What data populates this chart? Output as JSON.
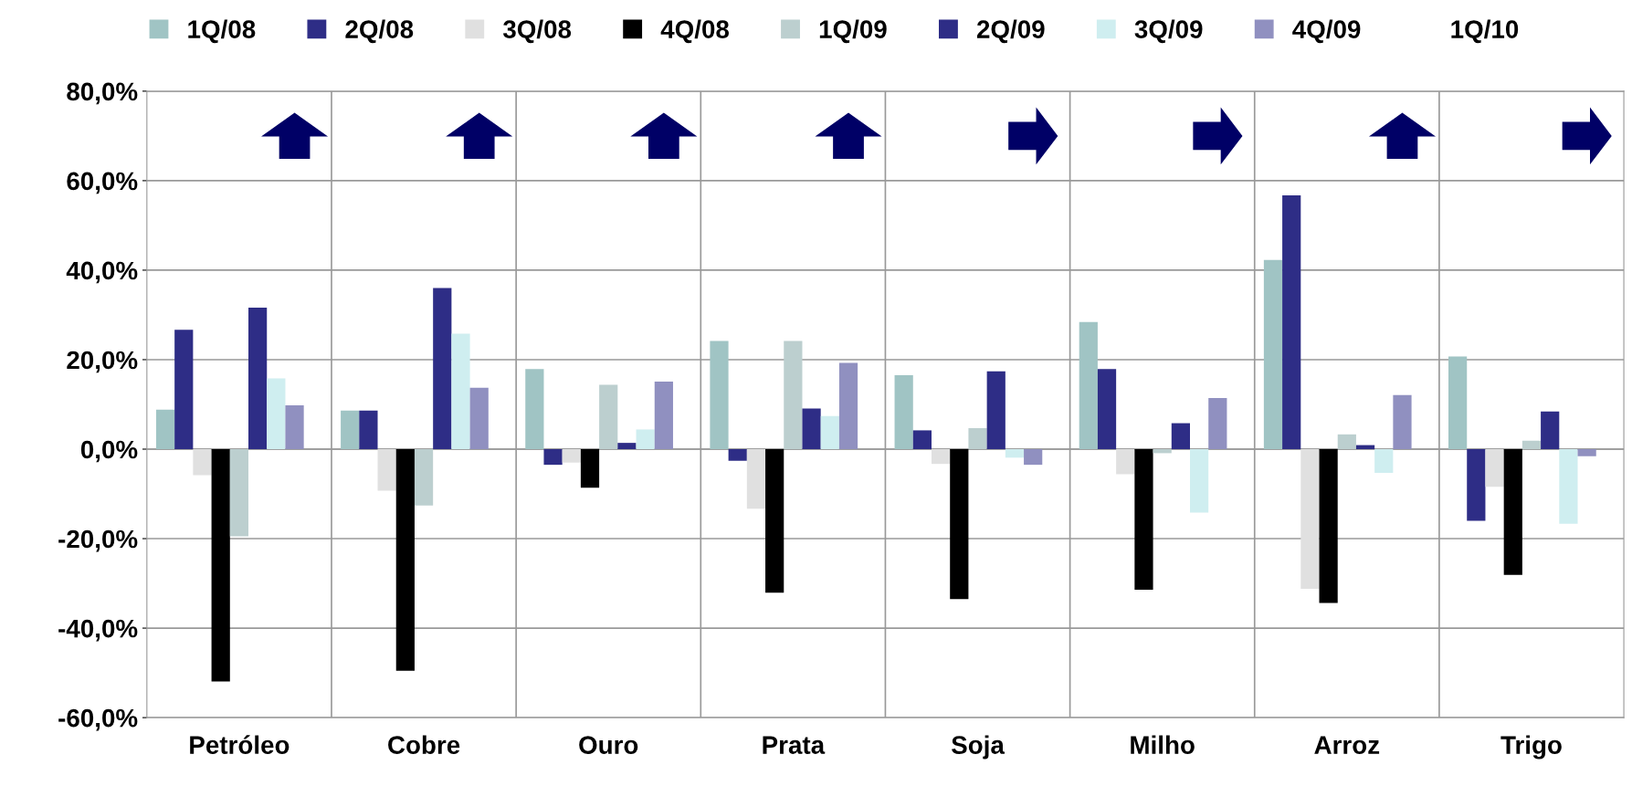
{
  "chart_data": {
    "type": "bar",
    "categories": [
      "Petróleo",
      "Cobre",
      "Ouro",
      "Prata",
      "Soja",
      "Milho",
      "Arroz",
      "Trigo"
    ],
    "series": [
      {
        "name": "1Q/08",
        "color": "#a0c4c4",
        "values": [
          8.8,
          8.6,
          17.9,
          24.2,
          16.5,
          28.4,
          42.3,
          20.7
        ]
      },
      {
        "name": "2Q/08",
        "color": "#2e2d86",
        "values": [
          26.7,
          8.6,
          -3.5,
          -2.6,
          4.2,
          17.9,
          56.7,
          -16
        ]
      },
      {
        "name": "3Q/08",
        "color": "#e0e0e0",
        "values": [
          -5.8,
          -9.3,
          -3,
          -13.3,
          -3.3,
          -5.6,
          -31.2,
          -8.4
        ]
      },
      {
        "name": "4Q/08",
        "color": "#000000",
        "values": [
          -51.9,
          -49.5,
          -8.6,
          -32.1,
          -33.5,
          -31.4,
          -34.4,
          -28.1
        ]
      },
      {
        "name": "1Q/09",
        "color": "#bccfcf",
        "values": [
          -19.5,
          -12.6,
          14.4,
          24.2,
          4.7,
          -0.9,
          3.3,
          1.9
        ]
      },
      {
        "name": "2Q/09",
        "color": "#2e2d86",
        "values": [
          31.6,
          36,
          1.4,
          9.1,
          17.4,
          5.8,
          0.9,
          8.4
        ]
      },
      {
        "name": "3Q/09",
        "color": "#cfeef0",
        "values": [
          15.8,
          25.8,
          4.4,
          7.4,
          -1.9,
          -14.2,
          -5.3,
          -16.7
        ]
      },
      {
        "name": "4Q/09",
        "color": "#9090c0",
        "values": [
          9.8,
          13.7,
          15.1,
          19.3,
          -3.5,
          11.4,
          12.1,
          -1.6
        ]
      },
      {
        "name": "1Q/10",
        "values": [
          null,
          null,
          null,
          null,
          null,
          null,
          null,
          null
        ]
      }
    ],
    "ylim": [
      -60,
      80
    ],
    "yticks": [
      {
        "value": -60,
        "label": "-60,0%"
      },
      {
        "value": -40,
        "label": "-40,0%"
      },
      {
        "value": -20,
        "label": "-20,0%"
      },
      {
        "value": 0,
        "label": "0,0%"
      },
      {
        "value": 20,
        "label": "20,0%"
      },
      {
        "value": 40,
        "label": "40,0%"
      },
      {
        "value": 60,
        "label": "60,0%"
      },
      {
        "value": 80,
        "label": "80,0%"
      }
    ],
    "grid": true,
    "legend": "top"
  }
}
